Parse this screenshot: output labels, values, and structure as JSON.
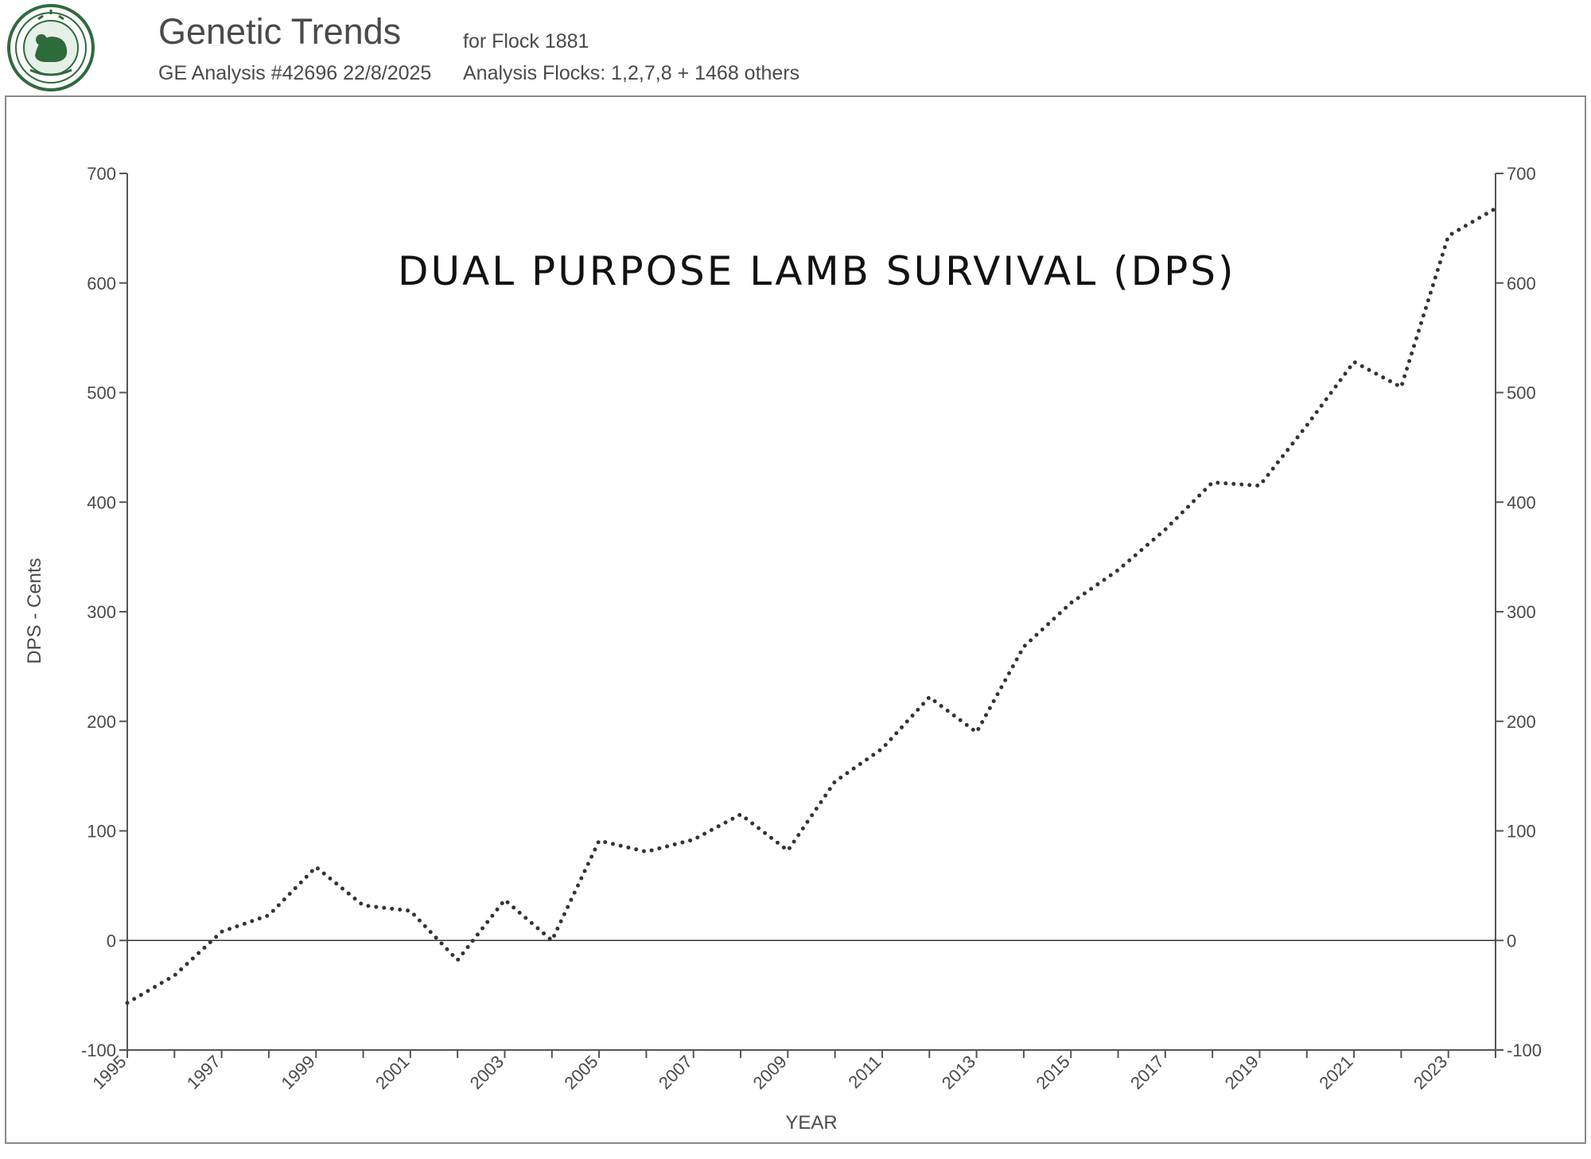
{
  "header": {
    "title": "Genetic Trends",
    "analysis_id": "GE Analysis #42696 22/8/2025",
    "flock": "for Flock 1881",
    "analysis_flocks": "Analysis Flocks: 1,2,7,8 + 1468 others",
    "logo_icon": "sil-sheep-improvement-limited-seal-icon",
    "logo_color": "#2e6b3a"
  },
  "chart_data": {
    "type": "line",
    "title": "DUAL PURPOSE LAMB SURVIVAL (DPS)",
    "xlabel": "YEAR",
    "ylabel": "DPS - Cents",
    "xlim": [
      1995,
      2024
    ],
    "ylim": [
      -100,
      700
    ],
    "yticks": [
      -100,
      0,
      100,
      200,
      300,
      400,
      500,
      600,
      700
    ],
    "xtick_labels": [
      "1995",
      "1997",
      "1999",
      "2001",
      "2003",
      "2005",
      "2007",
      "2009",
      "2011",
      "2013",
      "2015",
      "2017",
      "2019",
      "2021",
      "2023"
    ],
    "x": [
      1995,
      1996,
      1997,
      1998,
      1999,
      2000,
      2001,
      2002,
      2003,
      2004,
      2005,
      2006,
      2007,
      2008,
      2009,
      2010,
      2011,
      2012,
      2013,
      2014,
      2015,
      2016,
      2017,
      2018,
      2019,
      2020,
      2021,
      2022,
      2023,
      2024
    ],
    "series": [
      {
        "values": [
          -57,
          -32,
          8,
          23,
          67,
          32,
          27,
          -18,
          37,
          0,
          91,
          81,
          92,
          115,
          82,
          145,
          175,
          222,
          190,
          268,
          308,
          338,
          375,
          418,
          415,
          470,
          528,
          505,
          643,
          668
        ],
        "style": "dotted",
        "color": "#333333"
      }
    ],
    "zero_line": true,
    "secondary_y_axis": true,
    "grid": false
  }
}
